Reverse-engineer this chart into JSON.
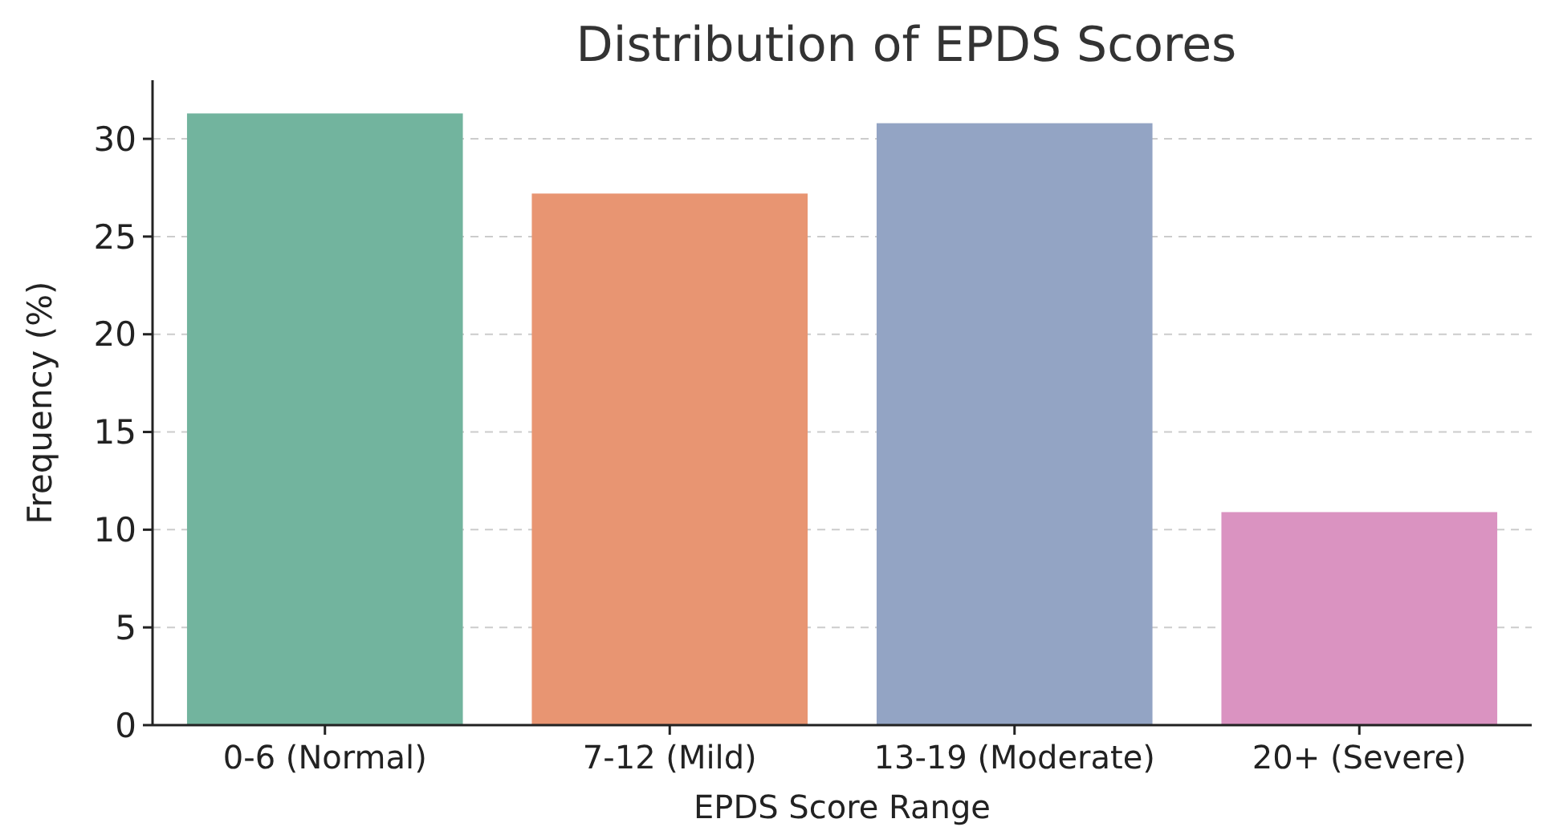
{
  "chart_data": {
    "type": "bar",
    "title": "Distribution of EPDS Scores",
    "xlabel": "EPDS Score Range",
    "ylabel": "Frequency (%)",
    "categories": [
      "0-6 (Normal)",
      "7-12 (Mild)",
      "13-19 (Moderate)",
      "20+ (Severe)"
    ],
    "values": [
      31.3,
      27.2,
      30.8,
      10.9
    ],
    "colors": [
      "#72b49e",
      "#e89572",
      "#93a4c4",
      "#da93c1"
    ],
    "ylim": [
      0,
      33
    ],
    "yticks": [
      0,
      5,
      10,
      15,
      20,
      25,
      30
    ],
    "grid": "y"
  }
}
